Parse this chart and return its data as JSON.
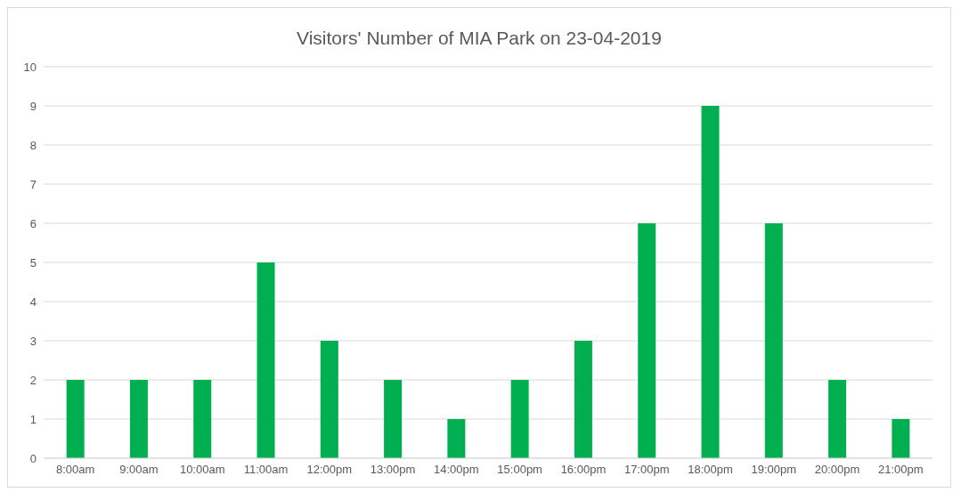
{
  "chart_data": {
    "type": "bar",
    "title": "Visitors' Number of MIA Park on 23-04-2019",
    "categories": [
      "8:00am",
      "9:00am",
      "10:00am",
      "11:00am",
      "12:00pm",
      "13:00pm",
      "14:00pm",
      "15:00pm",
      "16:00pm",
      "17:00pm",
      "18:00pm",
      "19:00pm",
      "20:00pm",
      "21:00pm"
    ],
    "values": [
      2,
      2,
      2,
      5,
      3,
      2,
      1,
      2,
      3,
      6,
      9,
      6,
      2,
      1
    ],
    "color": "#00b050",
    "ylim": [
      0,
      10
    ],
    "yticks": [
      0,
      1,
      2,
      3,
      4,
      5,
      6,
      7,
      8,
      9,
      10
    ],
    "grid": "y"
  }
}
